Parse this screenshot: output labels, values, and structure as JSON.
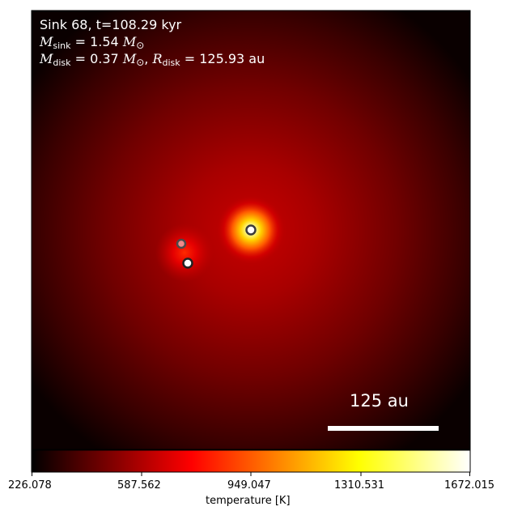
{
  "annotation": {
    "line1": "Sink 68, t=108.29 kyr",
    "mass_sink_symbol": "M",
    "mass_sink_sub": "sink",
    "mass_sink_value": " = 1.54 ",
    "mass_unit_symbol": "M",
    "mass_unit_sub": "⊙",
    "mass_disk_symbol": "M",
    "mass_disk_sub": "disk",
    "mass_disk_value": " = 0.37 ",
    "radius_disk_symbol": "R",
    "radius_disk_sub": "disk",
    "radius_disk_value": " = 125.93 au"
  },
  "scale_bar": {
    "label": "125 au"
  },
  "colorbar": {
    "label": "temperature [K]",
    "ticks": [
      "226.078",
      "587.562",
      "949.047",
      "1310.531",
      "1672.015"
    ],
    "min": 226.078,
    "max": 1672.015,
    "colormap": "hot"
  },
  "sinks": [
    {
      "name": "primary",
      "fill": "#ffffff",
      "edge": "#3a3a3a"
    },
    {
      "name": "secondary",
      "fill": "#ffffff",
      "edge": "#222222"
    },
    {
      "name": "tertiary",
      "fill": "#f08a8a",
      "edge": "#4a4a4a"
    }
  ]
}
